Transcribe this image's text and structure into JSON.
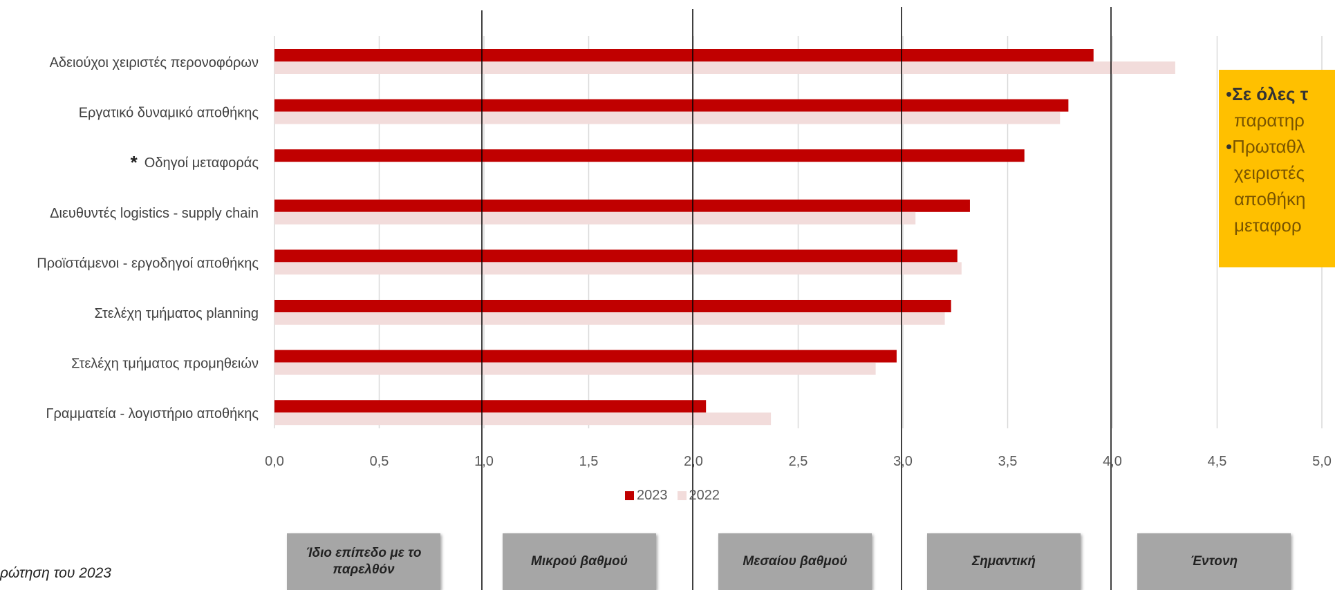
{
  "chart_data": {
    "type": "bar",
    "orientation": "horizontal",
    "categories": [
      "Αδειούχοι χειριστές περονοφόρων",
      "Εργατικό δυναμικό αποθήκης",
      "Οδηγοί μεταφοράς",
      "Διευθυντές logistics - supply chain",
      "Προϊστάμενοι - εργοδηγοί αποθήκης",
      "Στελέχη τμήματος planning",
      "Στελέχη τμήματος προμηθειών",
      "Γραμματεία - λογιστήριο αποθήκης"
    ],
    "series": [
      {
        "name": "2023",
        "values": [
          3.91,
          3.79,
          3.58,
          3.32,
          3.26,
          3.23,
          2.97,
          2.06
        ]
      },
      {
        "name": "2022",
        "values": [
          4.3,
          3.75,
          null,
          3.06,
          3.28,
          3.2,
          2.87,
          2.37
        ]
      }
    ],
    "xlim": [
      0,
      5
    ],
    "xticks": [
      "0,0",
      "0,5",
      "1,0",
      "1,5",
      "2,0",
      "2,5",
      "3,0",
      "3,5",
      "4,0",
      "4,5",
      "5,0"
    ],
    "grid": true,
    "legend_position": "bottom",
    "annotations": [
      {
        "category_index": 2,
        "text": "*"
      }
    ]
  },
  "colors": {
    "series_2023": "#C00000",
    "series_2022": "#F2DCDB",
    "grid": "#D9D9D9",
    "callout": "#FFC000"
  },
  "callout": {
    "line1_bold": "Σε όλες τ",
    "line2": "παρατηρ",
    "line3": "Πρωταθλ",
    "line4": "χειριστές",
    "line5": "αποθήκη",
    "line6": "μεταφορ"
  },
  "scale_boxes": [
    "Ίδιο επίπεδο με το παρελθόν",
    "Μικρού βαθμού",
    "Μεσαίου βαθμού",
    "Σημαντική",
    "Έντονη"
  ],
  "footnote": "ρώτηση του 2023"
}
